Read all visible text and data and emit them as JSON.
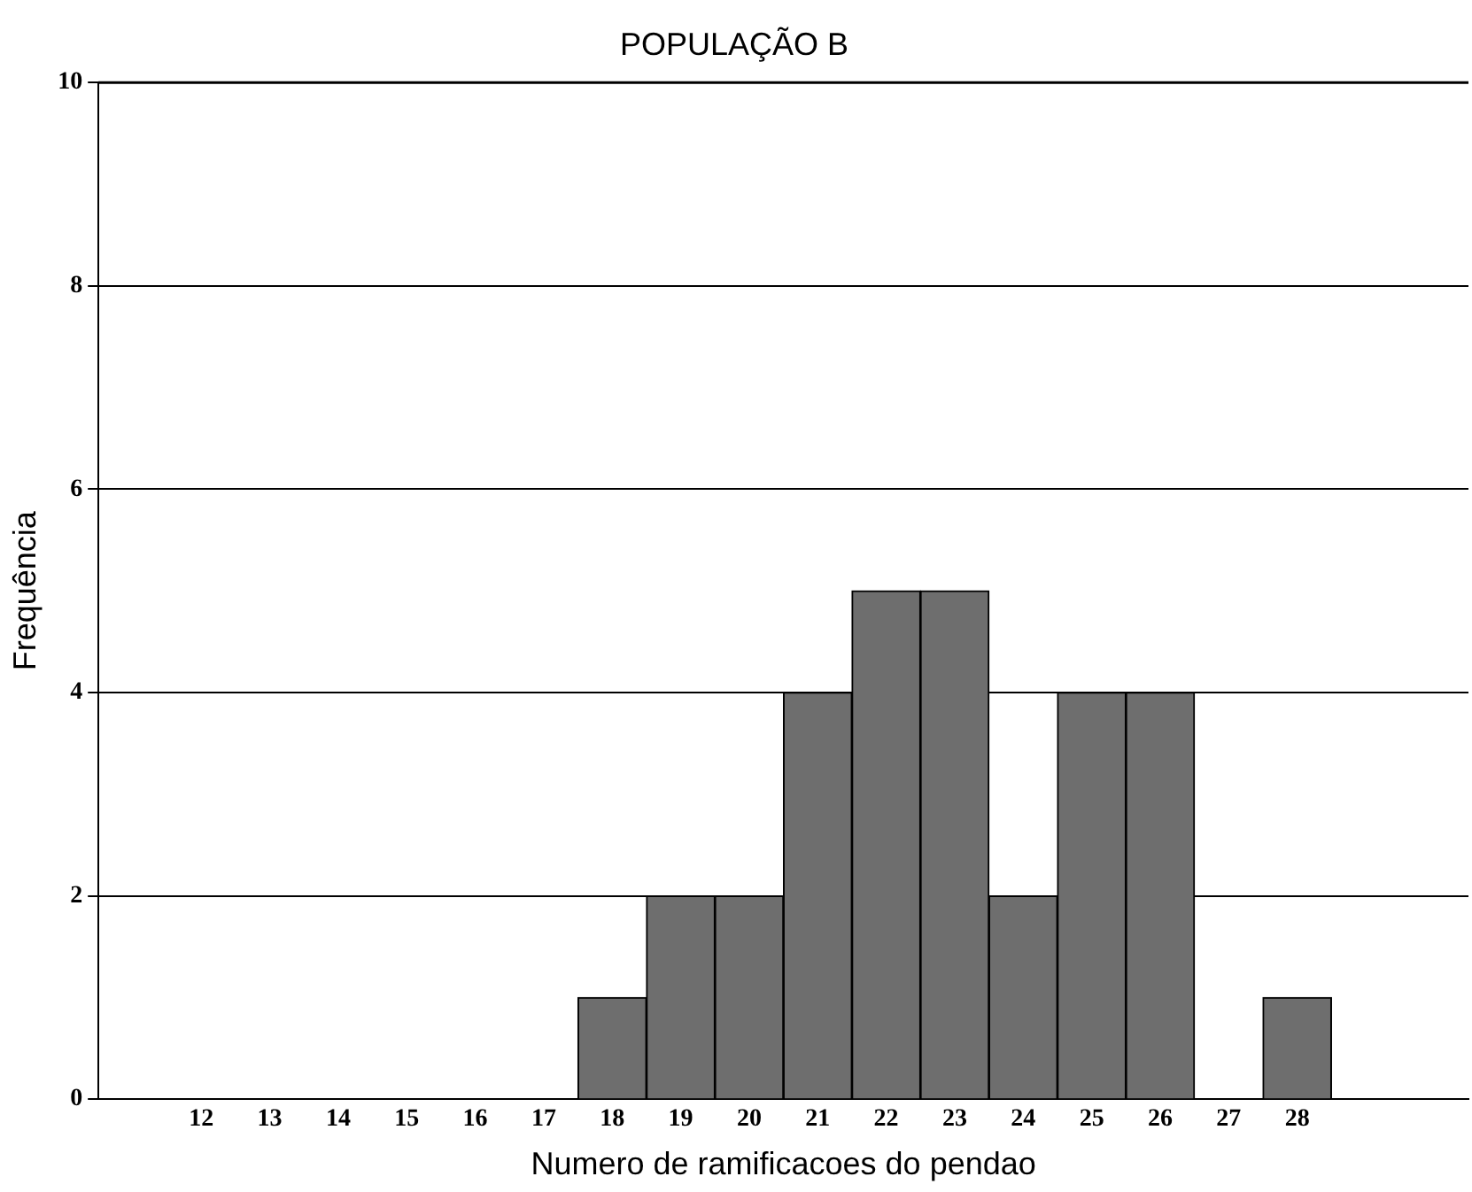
{
  "chart_data": {
    "type": "bar",
    "title": "POPULAÇÃO B",
    "xlabel": "Numero de ramificacoes do pendao",
    "ylabel": "Frequência",
    "categories": [
      null,
      "12",
      "13",
      "14",
      "15",
      "16",
      "17",
      "18",
      "19",
      "20",
      "21",
      "22",
      "23",
      "24",
      "25",
      "26",
      "27",
      "28",
      null,
      null
    ],
    "values": [
      0,
      0,
      0,
      0,
      0,
      0,
      0,
      1,
      2,
      2,
      4,
      5,
      5,
      2,
      4,
      4,
      0,
      1,
      0,
      0
    ],
    "color": "#6e6e6e",
    "ylim": [
      0,
      10
    ],
    "yticks": [
      0,
      2,
      4,
      6,
      8,
      10
    ],
    "grid": "y",
    "legend": false
  }
}
